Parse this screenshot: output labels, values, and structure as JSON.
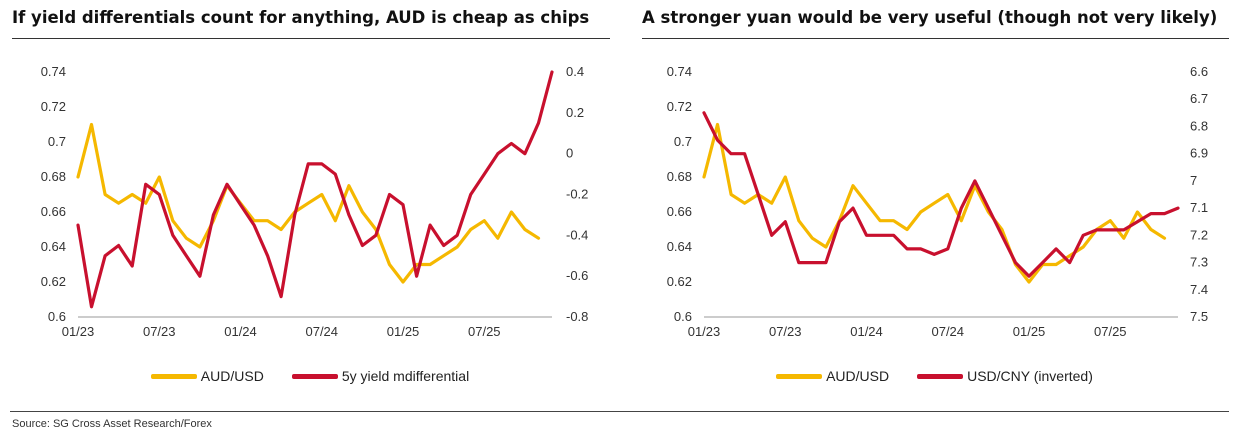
{
  "source": "Source: SG Cross Asset Research/Forex",
  "colors": {
    "aud": "#F5B800",
    "red": "#C8102E",
    "axis": "#999999"
  },
  "chart_data": [
    {
      "type": "line",
      "title": "If yield differentials count for anything, AUD is cheap as chips",
      "x_ticks": [
        "01/23",
        "07/23",
        "01/24",
        "07/24",
        "01/25",
        "07/25"
      ],
      "x_range": [
        "2023-01",
        "2025-12"
      ],
      "y_left": {
        "ticks": [
          "0.74",
          "0.72",
          "0.7",
          "0.68",
          "0.66",
          "0.64",
          "0.62",
          "0.6"
        ],
        "range": [
          0.6,
          0.74
        ]
      },
      "y_right": {
        "ticks": [
          "0.4",
          "0.2",
          "0",
          "-0.2",
          "-0.4",
          "-0.6",
          "-0.8"
        ],
        "range": [
          -0.8,
          0.4
        ]
      },
      "legend_position": "bottom",
      "series": [
        {
          "name": "AUD/USD",
          "axis": "left",
          "color": "#F5B800",
          "x": [
            "2023-01",
            "2023-02",
            "2023-03",
            "2023-04",
            "2023-05",
            "2023-06",
            "2023-07",
            "2023-08",
            "2023-09",
            "2023-10",
            "2023-11",
            "2023-12",
            "2024-01",
            "2024-02",
            "2024-03",
            "2024-04",
            "2024-05",
            "2024-06",
            "2024-07",
            "2024-08",
            "2024-09",
            "2024-10",
            "2024-11",
            "2024-12",
            "2025-01",
            "2025-02",
            "2025-03",
            "2025-04",
            "2025-05",
            "2025-06",
            "2025-07",
            "2025-08",
            "2025-09",
            "2025-10",
            "2025-11"
          ],
          "values": [
            0.68,
            0.71,
            0.67,
            0.665,
            0.67,
            0.665,
            0.68,
            0.655,
            0.645,
            0.64,
            0.655,
            0.675,
            0.665,
            0.655,
            0.655,
            0.65,
            0.66,
            0.665,
            0.67,
            0.655,
            0.675,
            0.66,
            0.65,
            0.63,
            0.62,
            0.63,
            0.63,
            0.635,
            0.64,
            0.65,
            0.655,
            0.645,
            0.66,
            0.65,
            0.645
          ]
        },
        {
          "name": "5y yield mdifferential",
          "axis": "right",
          "color": "#C8102E",
          "x": [
            "2023-01",
            "2023-02",
            "2023-03",
            "2023-04",
            "2023-05",
            "2023-06",
            "2023-07",
            "2023-08",
            "2023-09",
            "2023-10",
            "2023-11",
            "2023-12",
            "2024-01",
            "2024-02",
            "2024-03",
            "2024-04",
            "2024-05",
            "2024-06",
            "2024-07",
            "2024-08",
            "2024-09",
            "2024-10",
            "2024-11",
            "2024-12",
            "2025-01",
            "2025-02",
            "2025-03",
            "2025-04",
            "2025-05",
            "2025-06",
            "2025-07",
            "2025-08",
            "2025-09",
            "2025-10",
            "2025-11",
            "2025-12"
          ],
          "values": [
            -0.35,
            -0.75,
            -0.5,
            -0.45,
            -0.55,
            -0.15,
            -0.2,
            -0.4,
            -0.5,
            -0.6,
            -0.3,
            -0.15,
            -0.25,
            -0.35,
            -0.5,
            -0.7,
            -0.3,
            -0.05,
            -0.05,
            -0.1,
            -0.3,
            -0.45,
            -0.4,
            -0.2,
            -0.25,
            -0.6,
            -0.35,
            -0.45,
            -0.4,
            -0.2,
            -0.1,
            0.0,
            0.05,
            0.0,
            0.15,
            0.4
          ]
        }
      ]
    },
    {
      "type": "line",
      "title": "A stronger yuan would be very useful (though not very likely)",
      "x_ticks": [
        "01/23",
        "07/23",
        "01/24",
        "07/24",
        "01/25",
        "07/25"
      ],
      "x_range": [
        "2023-01",
        "2025-12"
      ],
      "y_left": {
        "ticks": [
          "0.74",
          "0.72",
          "0.7",
          "0.68",
          "0.66",
          "0.64",
          "0.62",
          "0.6"
        ],
        "range": [
          0.6,
          0.74
        ]
      },
      "y_right": {
        "ticks": [
          "6.6",
          "6.7",
          "6.8",
          "6.9",
          "7",
          "7.1",
          "7.2",
          "7.3",
          "7.4",
          "7.5"
        ],
        "range": [
          6.6,
          7.5
        ],
        "inverted": true
      },
      "legend_position": "bottom",
      "series": [
        {
          "name": "AUD/USD",
          "axis": "left",
          "color": "#F5B800",
          "x": [
            "2023-01",
            "2023-02",
            "2023-03",
            "2023-04",
            "2023-05",
            "2023-06",
            "2023-07",
            "2023-08",
            "2023-09",
            "2023-10",
            "2023-11",
            "2023-12",
            "2024-01",
            "2024-02",
            "2024-03",
            "2024-04",
            "2024-05",
            "2024-06",
            "2024-07",
            "2024-08",
            "2024-09",
            "2024-10",
            "2024-11",
            "2024-12",
            "2025-01",
            "2025-02",
            "2025-03",
            "2025-04",
            "2025-05",
            "2025-06",
            "2025-07",
            "2025-08",
            "2025-09",
            "2025-10",
            "2025-11"
          ],
          "values": [
            0.68,
            0.71,
            0.67,
            0.665,
            0.67,
            0.665,
            0.68,
            0.655,
            0.645,
            0.64,
            0.655,
            0.675,
            0.665,
            0.655,
            0.655,
            0.65,
            0.66,
            0.665,
            0.67,
            0.655,
            0.675,
            0.66,
            0.65,
            0.63,
            0.62,
            0.63,
            0.63,
            0.635,
            0.64,
            0.65,
            0.655,
            0.645,
            0.66,
            0.65,
            0.645
          ]
        },
        {
          "name": "USD/CNY (inverted)",
          "axis": "right",
          "color": "#C8102E",
          "x": [
            "2023-01",
            "2023-02",
            "2023-03",
            "2023-04",
            "2023-05",
            "2023-06",
            "2023-07",
            "2023-08",
            "2023-09",
            "2023-10",
            "2023-11",
            "2023-12",
            "2024-01",
            "2024-02",
            "2024-03",
            "2024-04",
            "2024-05",
            "2024-06",
            "2024-07",
            "2024-08",
            "2024-09",
            "2024-10",
            "2024-11",
            "2024-12",
            "2025-01",
            "2025-02",
            "2025-03",
            "2025-04",
            "2025-05",
            "2025-06",
            "2025-07",
            "2025-08",
            "2025-09",
            "2025-10",
            "2025-11",
            "2025-12"
          ],
          "values": [
            6.75,
            6.85,
            6.9,
            6.9,
            7.05,
            7.2,
            7.15,
            7.3,
            7.3,
            7.3,
            7.15,
            7.1,
            7.2,
            7.2,
            7.2,
            7.25,
            7.25,
            7.27,
            7.25,
            7.1,
            7.0,
            7.1,
            7.2,
            7.3,
            7.35,
            7.3,
            7.25,
            7.3,
            7.2,
            7.18,
            7.18,
            7.18,
            7.15,
            7.12,
            7.12,
            7.1
          ]
        }
      ]
    }
  ]
}
